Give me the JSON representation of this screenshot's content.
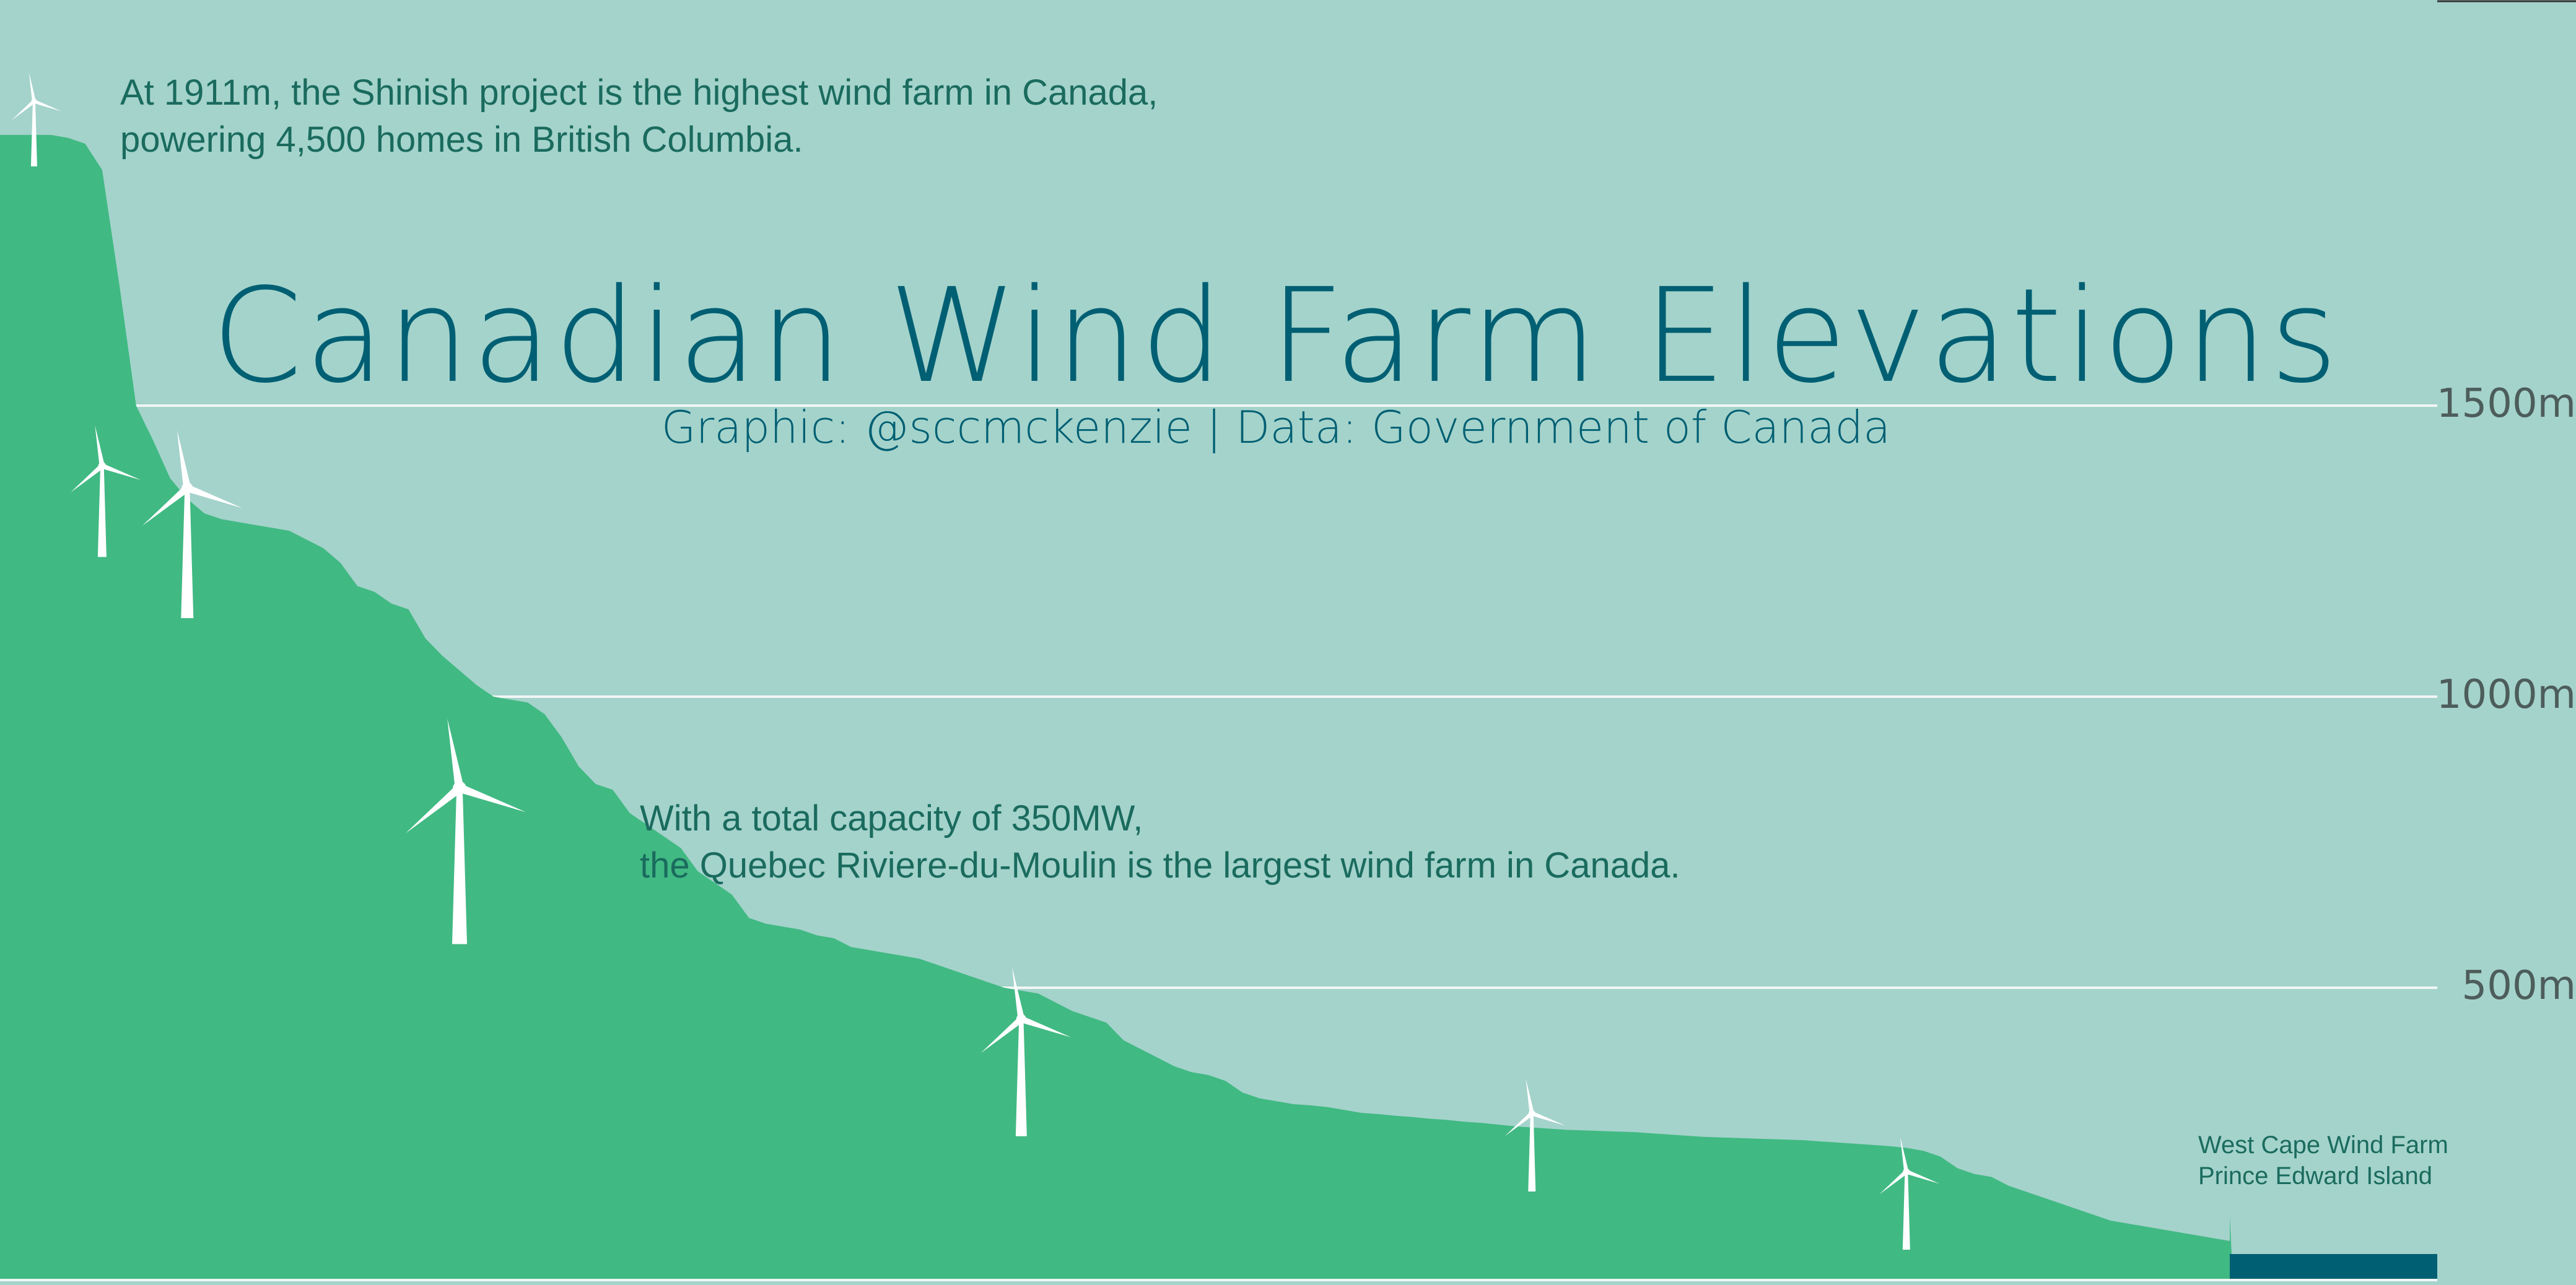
{
  "colors": {
    "background": "#a4d3cb",
    "terrain": "#41b983",
    "title_text": "#005f73",
    "annotation_text": "#1a6b5e",
    "gridline": "#f1f6f5",
    "turbine": "#ffffff",
    "ocean": "#005f73"
  },
  "chart_data": {
    "type": "area",
    "title": "Canadian Wind Farm Elevations",
    "subtitle": "Graphic: @sccmckenzie | Data: Government of Canada",
    "xlabel": "",
    "ylabel": "",
    "ylim": [
      0,
      2200
    ],
    "yticks": [
      {
        "value": 500,
        "label": "500m"
      },
      {
        "value": 1000,
        "label": "1000m"
      },
      {
        "value": 1500,
        "label": "1500m"
      }
    ],
    "grid": true,
    "elevation_profile": [
      1965,
      1965,
      1965,
      1965,
      1960,
      1950,
      1905,
      1710,
      1500,
      1440,
      1375,
      1340,
      1315,
      1305,
      1300,
      1295,
      1290,
      1285,
      1270,
      1255,
      1230,
      1190,
      1180,
      1160,
      1150,
      1100,
      1070,
      1045,
      1020,
      1000,
      995,
      990,
      970,
      930,
      880,
      850,
      840,
      800,
      780,
      760,
      740,
      700,
      680,
      660,
      620,
      610,
      605,
      600,
      590,
      585,
      570,
      565,
      560,
      555,
      550,
      540,
      530,
      520,
      510,
      500,
      495,
      490,
      475,
      460,
      450,
      440,
      410,
      395,
      380,
      365,
      355,
      350,
      340,
      320,
      310,
      305,
      300,
      298,
      295,
      290,
      285,
      283,
      280,
      278,
      275,
      273,
      270,
      268,
      265,
      262,
      260,
      258,
      256,
      255,
      254,
      253,
      252,
      250,
      248,
      246,
      244,
      243,
      242,
      241,
      240,
      239,
      238,
      236,
      234,
      232,
      230,
      228,
      225,
      220,
      210,
      190,
      180,
      175,
      160,
      150,
      140,
      130,
      120,
      110,
      100,
      95,
      90,
      85,
      80,
      75,
      70,
      65
    ],
    "wind_farms": [
      {
        "index": 2,
        "elevation": 1911,
        "turbine_scale": 0.5
      },
      {
        "index": 6,
        "elevation": 1240,
        "turbine_scale": 0.7
      },
      {
        "index": 11,
        "elevation": 1135,
        "turbine_scale": 1.0
      },
      {
        "index": 27,
        "elevation": 575,
        "turbine_scale": 1.2
      },
      {
        "index": 60,
        "elevation": 245,
        "turbine_scale": 0.9
      },
      {
        "index": 90,
        "elevation": 150,
        "turbine_scale": 0.6
      },
      {
        "index": 112,
        "elevation": 50,
        "turbine_scale": 0.6
      }
    ],
    "annotations": {
      "shinish": {
        "line1": "At 1911m, the Shinish project is the highest wind farm in Canada,",
        "line2": "powering 4,500 homes in British Columbia."
      },
      "quebec": {
        "line1": "With a total capacity of 350MW,",
        "line2": "the Quebec Riviere-du-Moulin is the largest wind farm in Canada."
      },
      "west_cape": {
        "line1": "West Cape Wind Farm",
        "line2": "Prince Edward Island"
      }
    }
  }
}
